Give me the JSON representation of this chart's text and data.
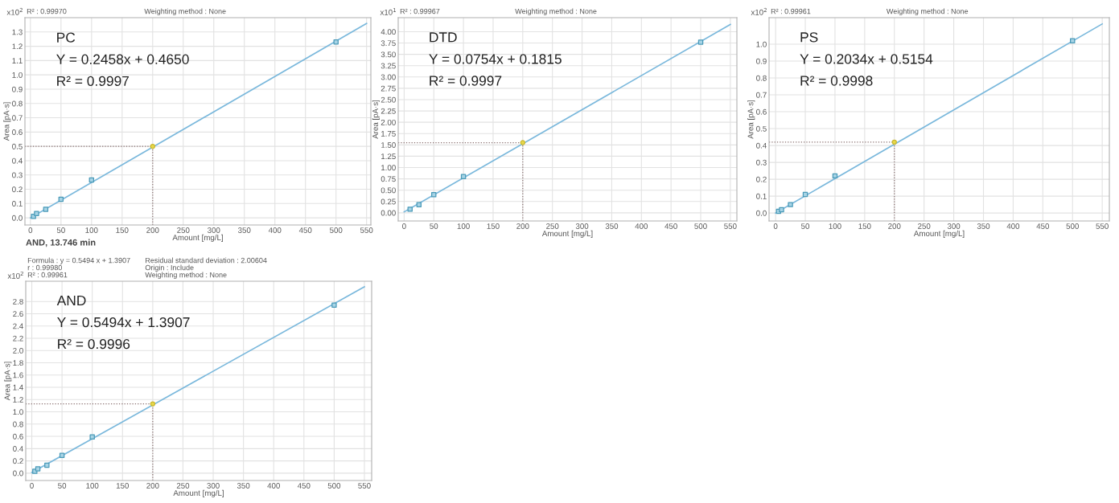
{
  "chart_data": [
    {
      "type": "scatter",
      "xlabel": "Amount [mg/L]",
      "ylabel": "Area [pA·s]",
      "marker": "square",
      "grid": true,
      "annotations": [
        "x10$^{2}$",
        "PC",
        "Y = 0.2458x + 0.4650",
        "R² = 0.9997",
        "R² : 0.99970",
        "Weighting method : None"
      ],
      "series": [
        {
          "type": "line",
          "color": "#7ab8dc",
          "marker": "none",
          "x": [
            0,
            550
          ],
          "values": [
            0.0,
            1.36
          ]
        },
        {
          "color": "#4a9ab8",
          "x": [
            5,
            10,
            25,
            50,
            100,
            500
          ],
          "values": [
            0.01,
            0.03,
            0.06,
            0.13,
            0.265,
            1.23
          ]
        },
        {
          "type": "scatter",
          "color": "#e8d84a",
          "marker": "circle",
          "x": [
            200
          ],
          "values": [
            0.5
          ]
        }
      ],
      "ref_lines": [
        {
          "axis": "y",
          "value": 0.5,
          "color": "#8a7070",
          "line_style": "dotted"
        },
        {
          "axis": "x",
          "value": 200,
          "color": "#8a7070",
          "line_style": "dotted"
        }
      ],
      "xlim": [
        -9,
        557
      ],
      "xticks": [
        0,
        50,
        100,
        150,
        200,
        250,
        300,
        350,
        400,
        450,
        500,
        550
      ],
      "ylim": [
        -0.05,
        1.4
      ],
      "yticks": [
        {
          "value": 0.0,
          "label": "0.0"
        },
        0.1,
        0.2,
        0.3,
        0.4,
        0.5,
        0.6,
        0.7,
        0.8,
        0.9,
        {
          "value": 1.0,
          "label": "1.0"
        },
        1.1,
        1.2,
        1.3
      ]
    },
    {
      "type": "scatter",
      "xlabel": "Amount [mg/L]",
      "ylabel": "Area [pA·s]",
      "marker": "square",
      "grid": true,
      "annotations": [
        "x10$^{1}$",
        "DTD",
        "Y = 0.0754x + 0.1815",
        "R² = 0.9997",
        "R² : 0.99967",
        "Weighting method : None"
      ],
      "series": [
        {
          "type": "line",
          "color": "#7ab8dc",
          "marker": "none",
          "x": [
            0,
            550
          ],
          "values": [
            0.02,
            4.16
          ]
        },
        {
          "color": "#4a9ab8",
          "x": [
            10,
            25,
            50,
            100,
            500
          ],
          "values": [
            0.08,
            0.18,
            0.4,
            0.8,
            3.77
          ]
        },
        {
          "type": "scatter",
          "color": "#e8d84a",
          "marker": "circle",
          "x": [
            200
          ],
          "values": [
            1.55
          ]
        }
      ],
      "ref_lines": [
        {
          "axis": "y",
          "value": 1.55,
          "color": "#8a7070",
          "line_style": "dotted"
        },
        {
          "axis": "x",
          "value": 200,
          "color": "#8a7070",
          "line_style": "dotted"
        }
      ],
      "xlim": [
        -10,
        561
      ],
      "xticks": [
        0,
        50,
        100,
        150,
        200,
        250,
        300,
        350,
        400,
        450,
        500,
        550
      ],
      "ylim": [
        -0.18,
        4.31
      ],
      "yticks": [
        {
          "value": 0.0,
          "label": "0.00"
        },
        {
          "value": 0.25,
          "label": "0.25"
        },
        {
          "value": 0.5,
          "label": "0.50"
        },
        {
          "value": 0.75,
          "label": "0.75"
        },
        {
          "value": 1.0,
          "label": "1.00"
        },
        {
          "value": 1.25,
          "label": "1.25"
        },
        {
          "value": 1.5,
          "label": "1.50"
        },
        {
          "value": 1.75,
          "label": "1.75"
        },
        {
          "value": 2.0,
          "label": "2.00"
        },
        {
          "value": 2.25,
          "label": "2.25"
        },
        {
          "value": 2.5,
          "label": "2.50"
        },
        {
          "value": 2.75,
          "label": "2.75"
        },
        {
          "value": 3.0,
          "label": "3.00"
        },
        {
          "value": 3.25,
          "label": "3.25"
        },
        {
          "value": 3.5,
          "label": "3.50"
        },
        {
          "value": 3.75,
          "label": "3.75"
        },
        {
          "value": 4.0,
          "label": "4.00"
        }
      ]
    },
    {
      "type": "scatter",
      "xlabel": "Amount [mg/L]",
      "ylabel": "Area [pA·s]",
      "marker": "square",
      "grid": true,
      "annotations": [
        "x10$^{2}$",
        "PS",
        "Y = 0.2034x + 0.5154",
        "R² = 0.9998",
        "R² : 0.99961",
        "Weighting method : None"
      ],
      "series": [
        {
          "type": "line",
          "color": "#7ab8dc",
          "marker": "none",
          "x": [
            0,
            550
          ],
          "values": [
            0.0,
            1.12
          ]
        },
        {
          "color": "#4a9ab8",
          "x": [
            5,
            10,
            25,
            50,
            100,
            500
          ],
          "values": [
            0.01,
            0.02,
            0.05,
            0.11,
            0.22,
            1.02
          ]
        },
        {
          "type": "scatter",
          "color": "#e8d84a",
          "marker": "circle",
          "x": [
            200
          ],
          "values": [
            0.42
          ]
        }
      ],
      "ref_lines": [
        {
          "axis": "y",
          "value": 0.42,
          "color": "#8a7070",
          "line_style": "dotted"
        },
        {
          "axis": "x",
          "value": 200,
          "color": "#8a7070",
          "line_style": "dotted"
        }
      ],
      "xlim": [
        -11,
        562
      ],
      "xticks": [
        0,
        50,
        100,
        150,
        200,
        250,
        300,
        350,
        400,
        450,
        500,
        550
      ],
      "ylim": [
        -0.047,
        1.157
      ],
      "yticks": [
        {
          "value": 0.0,
          "label": "0.0"
        },
        0.1,
        0.2,
        0.3,
        0.4,
        0.5,
        0.6,
        0.7,
        0.8,
        0.9,
        {
          "value": 1.0,
          "label": "1.0"
        }
      ]
    },
    {
      "type": "scatter",
      "title": "AND, 13.746 min",
      "xlabel": "Amount [mg/L]",
      "ylabel": "Area [pA·s]",
      "marker": "square",
      "grid": true,
      "annotations": [
        "x10$^{2}$",
        "AND",
        "Y = 0.5494x + 1.3907",
        "R² = 0.9996",
        "Formula : y = 0.5494 x + 1.3907",
        "Residual standard deviation : 2.00604",
        "r : 0.99980",
        "Origin : Include",
        "R² : 0.99961",
        "Weighting method : None"
      ],
      "series": [
        {
          "type": "line",
          "color": "#7ab8dc",
          "marker": "none",
          "x": [
            0,
            550
          ],
          "values": [
            0.01,
            3.04
          ]
        },
        {
          "color": "#4a9ab8",
          "x": [
            5,
            10,
            25,
            50,
            100,
            500
          ],
          "values": [
            0.03,
            0.07,
            0.13,
            0.29,
            0.59,
            2.74
          ]
        },
        {
          "type": "scatter",
          "color": "#e8d84a",
          "marker": "circle",
          "x": [
            200
          ],
          "values": [
            1.13
          ]
        }
      ],
      "ref_lines": [
        {
          "axis": "y",
          "value": 1.13,
          "color": "#8a7070",
          "line_style": "dotted"
        },
        {
          "axis": "x",
          "value": 200,
          "color": "#8a7070",
          "line_style": "dotted"
        }
      ],
      "xlim": [
        -10,
        562
      ],
      "xticks": [
        0,
        50,
        100,
        150,
        200,
        250,
        300,
        350,
        400,
        450,
        500,
        550
      ],
      "ylim": [
        -0.12,
        3.13
      ],
      "yticks": [
        {
          "value": 0.0,
          "label": "0.0"
        },
        0.2,
        0.4,
        0.6,
        0.8,
        {
          "value": 1.0,
          "label": "1.0"
        },
        1.2,
        1.4,
        1.6,
        1.8,
        {
          "value": 2.0,
          "label": "2.0"
        },
        2.2,
        2.4,
        2.6,
        2.8
      ]
    }
  ]
}
